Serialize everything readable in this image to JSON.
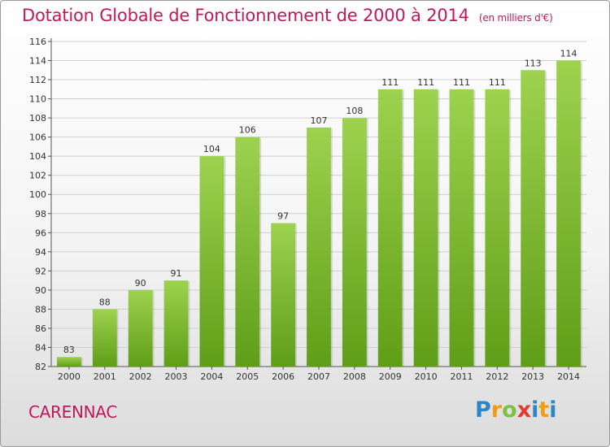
{
  "header": {
    "title": "Dotation Globale de Fonctionnement de 2000 à 2014",
    "unit": "(en milliers d'€)"
  },
  "footer": {
    "town": "CARENNAC",
    "logo": "Proxiti"
  },
  "colors": {
    "accent": "#c2185b",
    "bar_top": "#9dd24f",
    "bar_bottom": "#5f9e18",
    "grid": "#cfcfcf"
  },
  "chart_data": {
    "type": "bar",
    "categories": [
      "2000",
      "2001",
      "2002",
      "2003",
      "2004",
      "2005",
      "2006",
      "2007",
      "2008",
      "2009",
      "2010",
      "2011",
      "2012",
      "2013",
      "2014"
    ],
    "values": [
      83,
      88,
      90,
      91,
      104,
      106,
      97,
      107,
      108,
      111,
      111,
      111,
      111,
      113,
      114
    ],
    "title": "Dotation Globale de Fonctionnement de 2000 à 2014",
    "unit_label": "(en milliers d'€)",
    "ylim": [
      82,
      116
    ],
    "yticks": [
      82,
      84,
      86,
      88,
      90,
      92,
      94,
      96,
      98,
      100,
      102,
      104,
      106,
      108,
      110,
      112,
      114,
      116
    ],
    "grid": true,
    "data_labels": true
  }
}
